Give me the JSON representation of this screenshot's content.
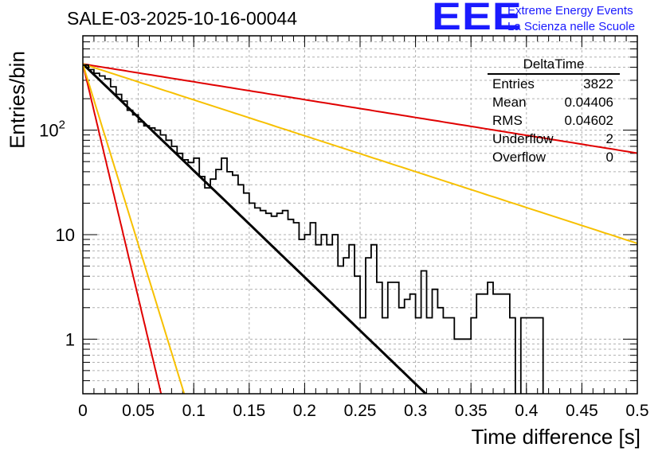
{
  "header": {
    "title": "SALE-03-2025-10-16-00044",
    "logo_text": "EEE",
    "logo_line1": "Extreme Energy Events",
    "logo_line2": "La Scienza nelle Scuole"
  },
  "stats_box": {
    "name": "DeltaTime",
    "rows": [
      {
        "label": "Entries",
        "value": "3822"
      },
      {
        "label": "Mean",
        "value": "0.04406"
      },
      {
        "label": "RMS",
        "value": "0.04602"
      },
      {
        "label": "Underflow",
        "value": "2"
      },
      {
        "label": "Overflow",
        "value": "0"
      }
    ]
  },
  "chart_data": {
    "type": "histogram",
    "title": "SALE-03-2025-10-16-00044",
    "xlabel": "Time difference [s]",
    "ylabel": "Entries/bin",
    "xlim": [
      0,
      0.5
    ],
    "ylim": [
      0.3,
      800
    ],
    "yscale": "log",
    "grid": true,
    "xticks": [
      0,
      0.05,
      0.1,
      0.15,
      0.2,
      0.25,
      0.3,
      0.35,
      0.4,
      0.45,
      0.5
    ],
    "xtick_labels": [
      "0",
      "0.05",
      "0.1",
      "0.15",
      "0.2",
      "0.25",
      "0.3",
      "0.35",
      "0.4",
      "0.45",
      "0.5"
    ],
    "yticks": [
      1,
      10,
      100
    ],
    "ytick_labels": [
      "1",
      "10",
      "10²"
    ],
    "bin_width": 0.005,
    "histogram_values": [
      420,
      380,
      350,
      330,
      310,
      260,
      220,
      190,
      155,
      140,
      120,
      110,
      105,
      100,
      90,
      80,
      70,
      60,
      52,
      49,
      54,
      36,
      28,
      34,
      42,
      54,
      40,
      37,
      30,
      25,
      20,
      18,
      17,
      16,
      15,
      16,
      17,
      14,
      13,
      9,
      10,
      13,
      8,
      10,
      8,
      10,
      5,
      6,
      8,
      4,
      1.6,
      6,
      8,
      3.5,
      1.6,
      3.5,
      3.5,
      2,
      2.4,
      2.7,
      1.6,
      4.5,
      1.6,
      3,
      2,
      1.6,
      1.6,
      1,
      1,
      1,
      1.6,
      2.7,
      2.7,
      3.5,
      2.7,
      2.7,
      2.7,
      1.6,
      0.3,
      1.6,
      1.6,
      1.6,
      1.6,
      0.3,
      0.3,
      0.3,
      0.3,
      0.3,
      0.3,
      0.3,
      0.3,
      0.3,
      0.3,
      0.3,
      0.3,
      0.3,
      0.3,
      0.3,
      0.3,
      0.3
    ],
    "series": [
      {
        "name": "fit",
        "color": "#000000",
        "type": "exponential",
        "y0": 430,
        "slope": 23.5,
        "x_range": [
          0,
          0.31
        ]
      },
      {
        "name": "red steep",
        "color": "#e00000",
        "type": "exponential",
        "y0": 430,
        "slope": 103,
        "x_range": [
          0,
          0.08
        ]
      },
      {
        "name": "yellow steep",
        "color": "#f7c000",
        "type": "exponential",
        "y0": 430,
        "slope": 79.5,
        "x_range": [
          0,
          0.095
        ]
      },
      {
        "name": "red shallow",
        "color": "#e00000",
        "type": "exponential",
        "y0": 430,
        "slope": 3.93,
        "x_range": [
          0,
          0.5
        ]
      },
      {
        "name": "yellow shallow",
        "color": "#f7c000",
        "type": "exponential",
        "y0": 430,
        "slope": 7.91,
        "x_range": [
          0,
          0.5
        ]
      }
    ]
  }
}
